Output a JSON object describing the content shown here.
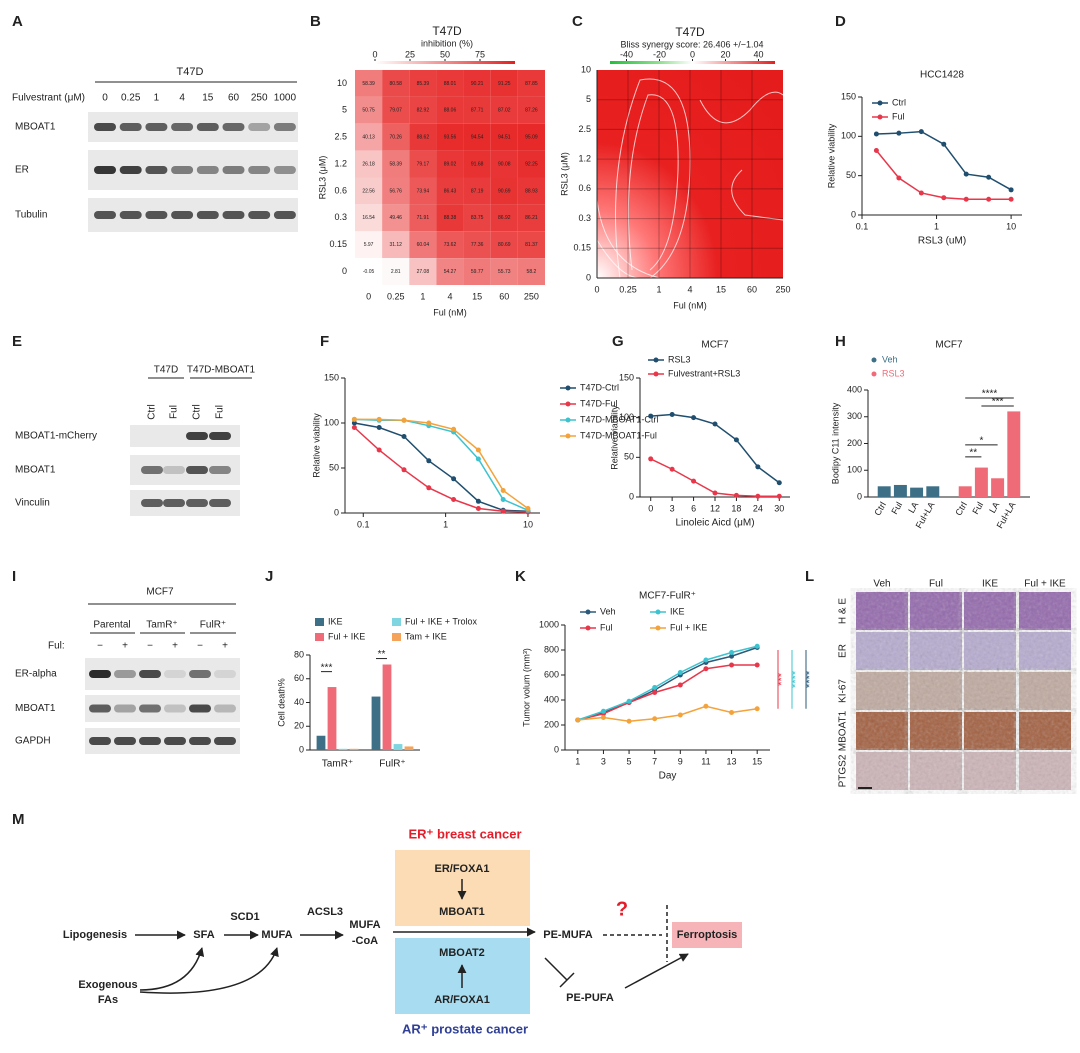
{
  "panel_labels": [
    "A",
    "B",
    "C",
    "D",
    "E",
    "F",
    "G",
    "H",
    "I",
    "J",
    "K",
    "L",
    "M"
  ],
  "blot_a": {
    "title": "T47D",
    "lane_label": "Fulvestrant (μM)",
    "lanes": [
      0,
      0.25,
      1,
      4,
      15,
      60,
      250,
      1000
    ],
    "rows": [
      "MBOAT1",
      "ER",
      "Tubulin"
    ]
  },
  "blot_e": {
    "groups": [
      "T47D",
      "T47D-MBOAT1"
    ],
    "lanes": [
      "Ctrl",
      "Ful",
      "Ctrl",
      "Ful"
    ],
    "rows": [
      "MBOAT1-mCherry",
      "MBOAT1",
      "Vinculin"
    ]
  },
  "blot_i": {
    "title": "MCF7",
    "groups": [
      "Parental",
      "TamR⁺",
      "FulR⁺"
    ],
    "lane_label": "Ful:",
    "lanes": [
      "−",
      "+",
      "−",
      "+",
      "−",
      "+"
    ],
    "rows": [
      "ER-alpha",
      "MBOAT1",
      "GAPDH"
    ]
  },
  "ihc_l": {
    "columns": [
      "Veh",
      "Ful",
      "IKE",
      "Ful + IKE"
    ],
    "rows": [
      "H & E",
      "ER",
      "KI-67",
      "MBOAT1",
      "PTGS2"
    ]
  },
  "chart_data": [
    {
      "type": "heatmap",
      "title": "T47D",
      "colorbar_label": "inhibition (%)",
      "clim": [
        0,
        100
      ],
      "cticks": [
        0,
        25,
        50,
        75
      ],
      "xlabel": "Ful (nM)",
      "ylabel": "RSL3 (μM)",
      "columns": [
        0,
        0.25,
        1,
        4,
        15,
        60,
        250
      ],
      "rows": [
        10,
        5,
        2.5,
        1.2,
        0.6,
        0.3,
        0.15,
        0
      ],
      "values": [
        [
          58.39,
          80.58,
          85.39,
          88.01,
          90.21,
          91.25,
          87.85
        ],
        [
          50.75,
          79.07,
          82.92,
          88.06,
          87.71,
          87.02,
          87.26
        ],
        [
          40.13,
          70.26,
          88.62,
          93.56,
          94.54,
          94.51,
          95.09
        ],
        [
          26.18,
          58.39,
          79.17,
          89.02,
          91.68,
          90.08,
          92.25
        ],
        [
          22.56,
          56.76,
          73.94,
          86.43,
          87.19,
          90.69,
          88.93
        ],
        [
          16.54,
          49.46,
          71.91,
          88.38,
          83.75,
          86.92,
          86.21
        ],
        [
          5.97,
          31.12,
          60.04,
          73.62,
          77.36,
          80.69,
          81.37
        ],
        [
          -0.05,
          2.81,
          27.08,
          54.27,
          59.77,
          55.73,
          58.2
        ]
      ]
    },
    {
      "type": "synergy",
      "title": "T47D",
      "subtitle": "Bliss synergy score: 26.406 +/−1.04",
      "clim": [
        -50,
        50
      ],
      "cticks": [
        -40,
        -20,
        0,
        20,
        40
      ],
      "xlabel": "Ful (nM)",
      "ylabel": "RSL3 (μM)",
      "columns": [
        0,
        0.25,
        1,
        4,
        15,
        60,
        250
      ],
      "rows": [
        10,
        5,
        2.5,
        1.2,
        0.6,
        0.3,
        0.15,
        0
      ]
    },
    {
      "type": "line",
      "title": "HCC1428",
      "xlabel": "RSL3 (uM)",
      "ylabel": "Relative viability",
      "xscale": "log",
      "xlim": [
        0.1,
        14
      ],
      "xticks": [
        0.1,
        1,
        10
      ],
      "ylim": [
        0,
        150
      ],
      "yticks": [
        0,
        50,
        100,
        150
      ],
      "legend": "upper left",
      "x": [
        0.156,
        0.3125,
        0.625,
        1.25,
        2.5,
        5,
        10
      ],
      "series": [
        {
          "name": "Ctrl",
          "color": "#1f4e6e",
          "values": [
            103,
            104,
            106,
            90,
            52,
            48,
            32
          ]
        },
        {
          "name": "Ful",
          "color": "#e8374a",
          "values": [
            82,
            47,
            28,
            22,
            20,
            20,
            20
          ]
        }
      ]
    },
    {
      "type": "line",
      "ylabel": "Relative viability",
      "xscale": "log",
      "xlim": [
        0.06,
        14
      ],
      "xticks": [
        0.1,
        1,
        10
      ],
      "ylim": [
        0,
        150
      ],
      "yticks": [
        0,
        50,
        100,
        150
      ],
      "legend": "right",
      "x": [
        0.078,
        0.156,
        0.3125,
        0.625,
        1.25,
        2.5,
        5,
        10
      ],
      "series": [
        {
          "name": "T47D-Ctrl",
          "color": "#1f4e6e",
          "values": [
            100,
            95,
            85,
            58,
            38,
            13,
            3,
            2
          ]
        },
        {
          "name": "T47D-Ful",
          "color": "#e8374a",
          "values": [
            95,
            70,
            48,
            28,
            15,
            5,
            2,
            1
          ]
        },
        {
          "name": "T47D-MBOAT1-Ctrl",
          "color": "#3cc3cf",
          "values": [
            104,
            103,
            103,
            97,
            90,
            60,
            15,
            3
          ]
        },
        {
          "name": "T47D-MBOAT1-Ful",
          "color": "#f4a23a",
          "values": [
            104,
            104,
            103,
            100,
            93,
            70,
            25,
            5
          ]
        }
      ]
    },
    {
      "type": "line",
      "title": "MCF7",
      "xlabel": "Linoleic Aicd (μM)",
      "ylabel": "Relative viability",
      "categories": [
        0,
        3,
        6,
        12,
        18,
        24,
        30
      ],
      "ylim": [
        0,
        150
      ],
      "yticks": [
        0,
        50,
        100,
        150
      ],
      "legend": "upper left",
      "series": [
        {
          "name": "RSL3",
          "color": "#1f4e6e",
          "values": [
            102,
            104,
            100,
            92,
            72,
            38,
            18
          ]
        },
        {
          "name": "Fulvestrant+RSL3",
          "color": "#e8374a",
          "values": [
            48,
            35,
            20,
            5,
            2,
            1,
            1
          ]
        }
      ]
    },
    {
      "type": "bar",
      "cluster": "series",
      "title": "MCF7",
      "ylabel": "Bodipy C11 intensity",
      "ylim": [
        0,
        400
      ],
      "yticks": [
        0,
        100,
        200,
        300,
        400
      ],
      "categories": [
        "Ctrl",
        "Ful",
        "LA",
        "Ful+LA"
      ],
      "legend": "upper left",
      "series": [
        {
          "name": "Veh",
          "color": "#3d6f86",
          "values": [
            40,
            45,
            35,
            40
          ]
        },
        {
          "name": "RSL3",
          "color": "#ef6b78",
          "values": [
            40,
            110,
            70,
            320
          ]
        }
      ],
      "annotations": [
        "**",
        "*",
        "****",
        "***"
      ]
    },
    {
      "type": "bar",
      "cluster": "categories",
      "ylabel": "Cell death%",
      "ylim": [
        0,
        80
      ],
      "yticks": [
        0,
        20,
        40,
        60,
        80
      ],
      "categories": [
        "TamR⁺",
        "FulR⁺"
      ],
      "legend": "top",
      "series": [
        {
          "name": "IKE",
          "color": "#3d6f86",
          "values": [
            12,
            45
          ]
        },
        {
          "name": "Ful + IKE",
          "color": "#ef6b78",
          "values": [
            53,
            72
          ]
        },
        {
          "name": "Ful + IKE + Trolox",
          "color": "#7fd6e0",
          "values": [
            1,
            5
          ]
        },
        {
          "name": "Tam + IKE",
          "color": "#f5a35a",
          "values": [
            1,
            3
          ]
        }
      ],
      "annotations": [
        "***",
        "**"
      ]
    },
    {
      "type": "line",
      "title": "MCF7-FulR⁺",
      "xlabel": "Day",
      "ylabel": "Tumor volum (mm³)",
      "xlim": [
        0,
        16
      ],
      "xticks": [
        1,
        3,
        5,
        7,
        9,
        11,
        13,
        15
      ],
      "ylim": [
        0,
        1000
      ],
      "yticks": [
        0,
        200,
        400,
        600,
        800,
        1000
      ],
      "legend": "top",
      "x": [
        1,
        3,
        5,
        7,
        9,
        11,
        13,
        15
      ],
      "series": [
        {
          "name": "Veh",
          "color": "#2b5a7a",
          "values": [
            240,
            300,
            380,
            480,
            600,
            700,
            750,
            820
          ]
        },
        {
          "name": "Ful",
          "color": "#e8374a",
          "values": [
            240,
            290,
            380,
            460,
            520,
            650,
            680,
            680
          ]
        },
        {
          "name": "IKE",
          "color": "#3cc3cf",
          "values": [
            240,
            310,
            390,
            500,
            620,
            720,
            780,
            830
          ]
        },
        {
          "name": "Ful + IKE",
          "color": "#f4a23a",
          "values": [
            240,
            260,
            230,
            250,
            280,
            350,
            300,
            330
          ]
        }
      ],
      "annotations": [
        "***",
        "****",
        "****"
      ]
    }
  ],
  "diagram_m": {
    "er_title": "ER⁺ breast cancer",
    "er_foxa1": "ER/FOXA1",
    "mboat1": "MBOAT1",
    "mboat2": "MBOAT2",
    "ar_foxa1": "AR/FOXA1",
    "ar_title": "AR⁺ prostate cancer",
    "lipogenesis": "Lipogenesis",
    "sfa": "SFA",
    "scd1": "SCD1",
    "mufa": "MUFA",
    "acsl3": "ACSL3",
    "mufa_coa": [
      "MUFA",
      "-CoA"
    ],
    "pe_mufa": "PE-MUFA",
    "question": "?",
    "ferroptosis": "Ferroptosis",
    "pe_pufa": "PE-PUFA",
    "exogenous": [
      "Exogenous",
      "FAs"
    ]
  }
}
